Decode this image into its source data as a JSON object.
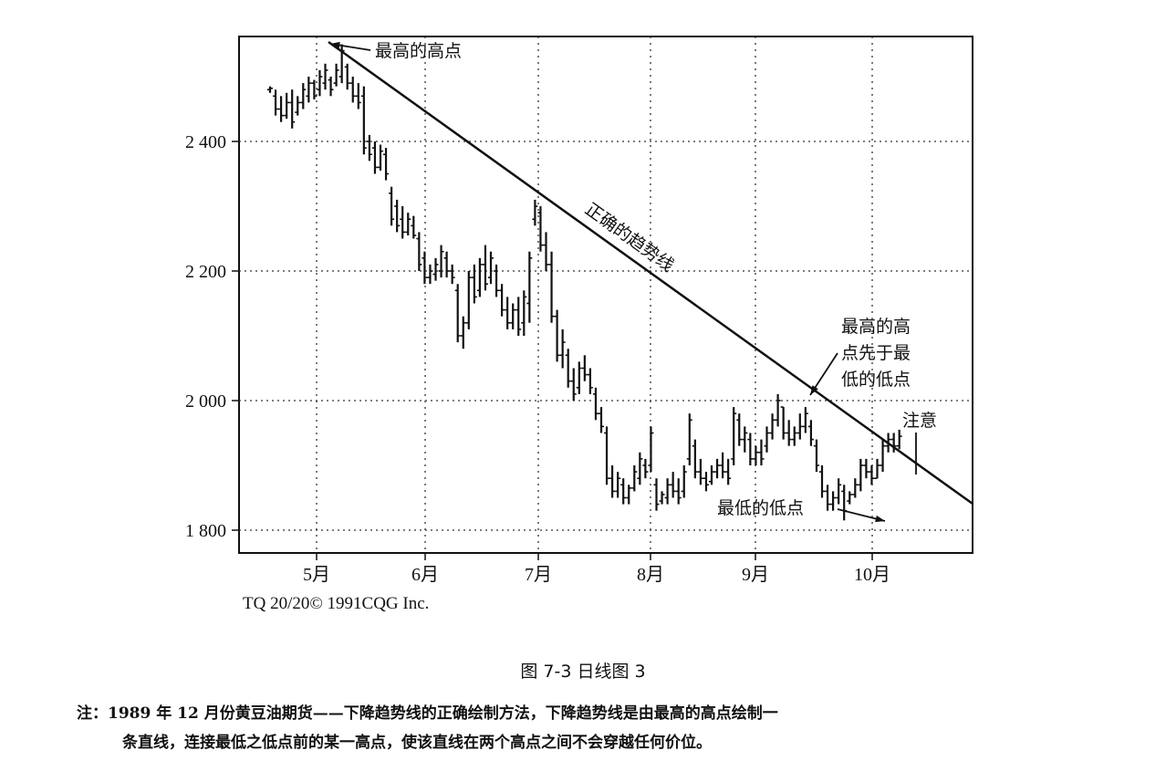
{
  "chart_data": {
    "type": "candlestick",
    "yticks": [
      "2 400",
      "2 200",
      "2 000",
      "1 800"
    ],
    "ytick_values": [
      2400,
      2200,
      2000,
      1800
    ],
    "ylim": [
      1765,
      2555
    ],
    "xticks": [
      "5月",
      "6月",
      "7月",
      "8月",
      "9月",
      "10月"
    ],
    "grid": true,
    "trendline": {
      "from": [
        4,
        2550
      ],
      "to": [
        198,
        1840
      ],
      "label": "正确的趋势线"
    },
    "annotations": [
      {
        "text": "最高的高点"
      },
      {
        "text": [
          "最高的高",
          "点先于最",
          "低的低点"
        ]
      },
      {
        "text": "注意"
      },
      {
        "text": "最低的低点"
      }
    ],
    "bars": [
      {
        "h": 2485,
        "l": 2475,
        "o": 2480,
        "c": 2482
      },
      {
        "h": 2480,
        "l": 2440,
        "o": 2470,
        "c": 2450
      },
      {
        "h": 2470,
        "l": 2430,
        "o": 2450,
        "c": 2440
      },
      {
        "h": 2475,
        "l": 2435,
        "o": 2440,
        "c": 2460
      },
      {
        "h": 2480,
        "l": 2420,
        "o": 2460,
        "c": 2430
      },
      {
        "h": 2470,
        "l": 2440,
        "o": 2445,
        "c": 2460
      },
      {
        "h": 2490,
        "l": 2450,
        "o": 2460,
        "c": 2480
      },
      {
        "h": 2500,
        "l": 2460,
        "o": 2470,
        "c": 2490
      },
      {
        "h": 2495,
        "l": 2465,
        "o": 2490,
        "c": 2470
      },
      {
        "h": 2510,
        "l": 2470,
        "o": 2480,
        "c": 2500
      },
      {
        "h": 2520,
        "l": 2480,
        "o": 2490,
        "c": 2510
      },
      {
        "h": 2500,
        "l": 2470,
        "o": 2495,
        "c": 2480
      },
      {
        "h": 2520,
        "l": 2485,
        "o": 2490,
        "c": 2510
      },
      {
        "h": 2550,
        "l": 2490,
        "o": 2500,
        "c": 2540
      },
      {
        "h": 2520,
        "l": 2480,
        "o": 2515,
        "c": 2490
      },
      {
        "h": 2500,
        "l": 2460,
        "o": 2490,
        "c": 2470
      },
      {
        "h": 2490,
        "l": 2450,
        "o": 2470,
        "c": 2460
      },
      {
        "h": 2485,
        "l": 2380,
        "o": 2470,
        "c": 2390
      },
      {
        "h": 2410,
        "l": 2370,
        "o": 2400,
        "c": 2380
      },
      {
        "h": 2400,
        "l": 2350,
        "o": 2390,
        "c": 2360
      },
      {
        "h": 2395,
        "l": 2355,
        "o": 2360,
        "c": 2385
      },
      {
        "h": 2390,
        "l": 2340,
        "o": 2380,
        "c": 2350
      },
      {
        "h": 2330,
        "l": 2270,
        "o": 2320,
        "c": 2280
      },
      {
        "h": 2310,
        "l": 2260,
        "o": 2300,
        "c": 2270
      },
      {
        "h": 2300,
        "l": 2250,
        "o": 2280,
        "c": 2260
      },
      {
        "h": 2290,
        "l": 2255,
        "o": 2260,
        "c": 2280
      },
      {
        "h": 2285,
        "l": 2250,
        "o": 2270,
        "c": 2255
      },
      {
        "h": 2260,
        "l": 2200,
        "o": 2250,
        "c": 2210
      },
      {
        "h": 2230,
        "l": 2180,
        "o": 2220,
        "c": 2190
      },
      {
        "h": 2210,
        "l": 2180,
        "o": 2190,
        "c": 2200
      },
      {
        "h": 2220,
        "l": 2185,
        "o": 2195,
        "c": 2210
      },
      {
        "h": 2240,
        "l": 2190,
        "o": 2200,
        "c": 2230
      },
      {
        "h": 2230,
        "l": 2190,
        "o": 2220,
        "c": 2200
      },
      {
        "h": 2210,
        "l": 2180,
        "o": 2200,
        "c": 2190
      },
      {
        "h": 2180,
        "l": 2090,
        "o": 2170,
        "c": 2100
      },
      {
        "h": 2130,
        "l": 2080,
        "o": 2100,
        "c": 2120
      },
      {
        "h": 2200,
        "l": 2110,
        "o": 2120,
        "c": 2190
      },
      {
        "h": 2210,
        "l": 2150,
        "o": 2190,
        "c": 2160
      },
      {
        "h": 2220,
        "l": 2160,
        "o": 2170,
        "c": 2210
      },
      {
        "h": 2240,
        "l": 2170,
        "o": 2210,
        "c": 2180
      },
      {
        "h": 2230,
        "l": 2180,
        "o": 2190,
        "c": 2220
      },
      {
        "h": 2210,
        "l": 2160,
        "o": 2200,
        "c": 2170
      },
      {
        "h": 2180,
        "l": 2130,
        "o": 2170,
        "c": 2140
      },
      {
        "h": 2160,
        "l": 2110,
        "o": 2140,
        "c": 2120
      },
      {
        "h": 2150,
        "l": 2110,
        "o": 2120,
        "c": 2140
      },
      {
        "h": 2160,
        "l": 2100,
        "o": 2140,
        "c": 2110
      },
      {
        "h": 2170,
        "l": 2100,
        "o": 2120,
        "c": 2160
      },
      {
        "h": 2230,
        "l": 2120,
        "o": 2150,
        "c": 2220
      },
      {
        "h": 2310,
        "l": 2270,
        "o": 2280,
        "c": 2300
      },
      {
        "h": 2300,
        "l": 2230,
        "o": 2290,
        "c": 2240
      },
      {
        "h": 2260,
        "l": 2200,
        "o": 2240,
        "c": 2210
      },
      {
        "h": 2230,
        "l": 2120,
        "o": 2210,
        "c": 2130
      },
      {
        "h": 2140,
        "l": 2060,
        "o": 2130,
        "c": 2070
      },
      {
        "h": 2110,
        "l": 2050,
        "o": 2070,
        "c": 2090
      },
      {
        "h": 2080,
        "l": 2020,
        "o": 2070,
        "c": 2030
      },
      {
        "h": 2050,
        "l": 2000,
        "o": 2030,
        "c": 2010
      },
      {
        "h": 2060,
        "l": 2010,
        "o": 2020,
        "c": 2050
      },
      {
        "h": 2070,
        "l": 2030,
        "o": 2050,
        "c": 2040
      },
      {
        "h": 2050,
        "l": 2010,
        "o": 2040,
        "c": 2020
      },
      {
        "h": 2020,
        "l": 1970,
        "o": 2010,
        "c": 1980
      },
      {
        "h": 1990,
        "l": 1950,
        "o": 1980,
        "c": 1960
      },
      {
        "h": 1960,
        "l": 1870,
        "o": 1950,
        "c": 1880
      },
      {
        "h": 1900,
        "l": 1850,
        "o": 1880,
        "c": 1860
      },
      {
        "h": 1890,
        "l": 1850,
        "o": 1860,
        "c": 1880
      },
      {
        "h": 1880,
        "l": 1840,
        "o": 1870,
        "c": 1850
      },
      {
        "h": 1870,
        "l": 1840,
        "o": 1850,
        "c": 1865
      },
      {
        "h": 1900,
        "l": 1860,
        "o": 1865,
        "c": 1890
      },
      {
        "h": 1920,
        "l": 1870,
        "o": 1880,
        "c": 1910
      },
      {
        "h": 1910,
        "l": 1880,
        "o": 1900,
        "c": 1890
      },
      {
        "h": 1960,
        "l": 1890,
        "o": 1900,
        "c": 1950
      },
      {
        "h": 1880,
        "l": 1830,
        "o": 1870,
        "c": 1840
      },
      {
        "h": 1860,
        "l": 1840,
        "o": 1845,
        "c": 1855
      },
      {
        "h": 1880,
        "l": 1840,
        "o": 1850,
        "c": 1870
      },
      {
        "h": 1890,
        "l": 1850,
        "o": 1870,
        "c": 1860
      },
      {
        "h": 1880,
        "l": 1840,
        "o": 1860,
        "c": 1850
      },
      {
        "h": 1900,
        "l": 1850,
        "o": 1860,
        "c": 1890
      },
      {
        "h": 1980,
        "l": 1900,
        "o": 1910,
        "c": 1970
      },
      {
        "h": 1940,
        "l": 1880,
        "o": 1930,
        "c": 1890
      },
      {
        "h": 1910,
        "l": 1870,
        "o": 1890,
        "c": 1880
      },
      {
        "h": 1890,
        "l": 1860,
        "o": 1880,
        "c": 1870
      },
      {
        "h": 1900,
        "l": 1870,
        "o": 1875,
        "c": 1890
      },
      {
        "h": 1910,
        "l": 1880,
        "o": 1890,
        "c": 1900
      },
      {
        "h": 1920,
        "l": 1880,
        "o": 1900,
        "c": 1890
      },
      {
        "h": 1910,
        "l": 1870,
        "o": 1890,
        "c": 1880
      },
      {
        "h": 1990,
        "l": 1900,
        "o": 1910,
        "c": 1980
      },
      {
        "h": 1980,
        "l": 1930,
        "o": 1970,
        "c": 1940
      },
      {
        "h": 1960,
        "l": 1920,
        "o": 1940,
        "c": 1950
      },
      {
        "h": 1950,
        "l": 1900,
        "o": 1940,
        "c": 1910
      },
      {
        "h": 1930,
        "l": 1900,
        "o": 1910,
        "c": 1920
      },
      {
        "h": 1940,
        "l": 1900,
        "o": 1920,
        "c": 1910
      },
      {
        "h": 1960,
        "l": 1920,
        "o": 1930,
        "c": 1950
      },
      {
        "h": 1980,
        "l": 1940,
        "o": 1950,
        "c": 1970
      },
      {
        "h": 2010,
        "l": 1960,
        "o": 1970,
        "c": 2000
      },
      {
        "h": 1990,
        "l": 1940,
        "o": 1990,
        "c": 1950
      },
      {
        "h": 1970,
        "l": 1930,
        "o": 1950,
        "c": 1940
      },
      {
        "h": 1960,
        "l": 1930,
        "o": 1940,
        "c": 1950
      },
      {
        "h": 1980,
        "l": 1940,
        "o": 1950,
        "c": 1960
      },
      {
        "h": 1990,
        "l": 1950,
        "o": 1960,
        "c": 1980
      },
      {
        "h": 1970,
        "l": 1930,
        "o": 1960,
        "c": 1940
      },
      {
        "h": 1940,
        "l": 1890,
        "o": 1930,
        "c": 1900
      },
      {
        "h": 1900,
        "l": 1850,
        "o": 1890,
        "c": 1860
      },
      {
        "h": 1870,
        "l": 1830,
        "o": 1860,
        "c": 1840
      },
      {
        "h": 1860,
        "l": 1830,
        "o": 1840,
        "c": 1850
      },
      {
        "h": 1880,
        "l": 1840,
        "o": 1850,
        "c": 1870
      },
      {
        "h": 1870,
        "l": 1815,
        "o": 1860,
        "c": 1830
      },
      {
        "h": 1860,
        "l": 1840,
        "o": 1845,
        "c": 1855
      },
      {
        "h": 1880,
        "l": 1850,
        "o": 1855,
        "c": 1870
      },
      {
        "h": 1910,
        "l": 1860,
        "o": 1870,
        "c": 1900
      },
      {
        "h": 1910,
        "l": 1880,
        "o": 1900,
        "c": 1890
      },
      {
        "h": 1900,
        "l": 1870,
        "o": 1890,
        "c": 1880
      },
      {
        "h": 1910,
        "l": 1880,
        "o": 1880,
        "c": 1900
      },
      {
        "h": 1940,
        "l": 1890,
        "o": 1900,
        "c": 1930
      },
      {
        "h": 1950,
        "l": 1920,
        "o": 1930,
        "c": 1940
      },
      {
        "h": 1950,
        "l": 1920,
        "o": 1940,
        "c": 1930
      },
      {
        "h": 1955,
        "l": 1925,
        "o": 1930,
        "c": 1945
      }
    ]
  },
  "credit": "TQ 20/20© 1991CQG Inc.",
  "figure_title": "图 7-3    日线图 3",
  "note_line1": "注：1989 年 12 月份黄豆油期货——下降趋势线的正确绘制方法，下降趋势线是由最高的高点绘制一",
  "note_line2": "条直线，连接最低之低点前的某一高点，使该直线在两个高点之间不会穿越任何价位。"
}
